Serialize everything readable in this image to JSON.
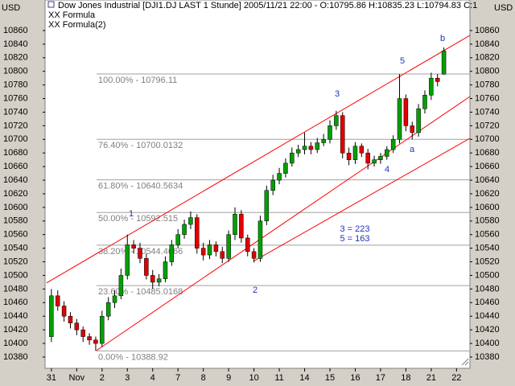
{
  "chart_data": {
    "type": "candlestick",
    "title": "Dow Jones Industrial [DJI1.DJ LAST 1 Stunde] 2005/11/21 22:00 - O:10795.86 H:10835.23 L:10794.83 C:1",
    "legend": [
      "XX Formula",
      "XX Formula(2)"
    ],
    "y_unit": "USD",
    "up_color": "#00a000",
    "down_color": "#e00000",
    "x": [
      0,
      0.25,
      0.5,
      0.75,
      1,
      1.25,
      1.5,
      1.75,
      2,
      2.25,
      2.5,
      2.75,
      3,
      3.25,
      3.5,
      3.75,
      4,
      4.25,
      4.5,
      4.75,
      5,
      5.25,
      5.5,
      5.75,
      6,
      6.25,
      6.5,
      6.75,
      7,
      7.25,
      7.5,
      7.75,
      8,
      8.25,
      8.5,
      8.75,
      9,
      9.25,
      9.5,
      9.75,
      10,
      10.25,
      10.5,
      10.75,
      11,
      11.25,
      11.5,
      11.75,
      12,
      12.25,
      12.5,
      12.75,
      13,
      13.25,
      13.5,
      13.75,
      14,
      14.25,
      14.5,
      14.75,
      15,
      15.25,
      15.5
    ],
    "open": [
      10410,
      10470,
      10455,
      10440,
      10430,
      10420,
      10410,
      10405,
      10400,
      10440,
      10460,
      10470,
      10500,
      10545,
      10540,
      10525,
      10500,
      10490,
      10495,
      10520,
      10545,
      10560,
      10575,
      10585,
      10540,
      10530,
      10545,
      10535,
      10525,
      10560,
      10590,
      10555,
      10535,
      10525,
      10580,
      10625,
      10640,
      10650,
      10665,
      10680,
      10685,
      10690,
      10685,
      10695,
      10700,
      10720,
      10735,
      10680,
      10670,
      10690,
      10680,
      10665,
      10670,
      10675,
      10685,
      10700,
      10760,
      10720,
      10710,
      10745,
      10765,
      10790,
      10795.86
    ],
    "high": [
      10480,
      10478,
      10462,
      10446,
      10436,
      10425,
      10415,
      10410,
      10448,
      10468,
      10478,
      10510,
      10560,
      10552,
      10548,
      10532,
      10508,
      10502,
      10528,
      10552,
      10568,
      10582,
      10594,
      10590,
      10548,
      10552,
      10550,
      10542,
      10566,
      10600,
      10596,
      10560,
      10540,
      10588,
      10632,
      10648,
      10658,
      10672,
      10688,
      10692,
      10710,
      10696,
      10702,
      10708,
      10728,
      10742,
      10740,
      10688,
      10696,
      10694,
      10686,
      10676,
      10680,
      10690,
      10706,
      10796,
      10766,
      10726,
      10752,
      10772,
      10798,
      10796,
      10835.23
    ],
    "low": [
      10402,
      10448,
      10432,
      10422,
      10412,
      10402,
      10398,
      10388.92,
      10395,
      10434,
      10452,
      10465,
      10494,
      10532,
      10518,
      10494,
      10480,
      10484,
      10490,
      10514,
      10540,
      10554,
      10568,
      10532,
      10522,
      10524,
      10528,
      10518,
      10520,
      10552,
      10548,
      10528,
      10519,
      10520,
      10574,
      10618,
      10634,
      10644,
      10660,
      10674,
      10678,
      10678,
      10680,
      10690,
      10694,
      10714,
      10672,
      10662,
      10664,
      10674,
      10656,
      10660,
      10664,
      10670,
      10680,
      10694,
      10712,
      10700,
      10704,
      10738,
      10758,
      10778,
      10794.83
    ],
    "close": [
      10470,
      10455,
      10440,
      10430,
      10420,
      10410,
      10405,
      10400,
      10440,
      10460,
      10470,
      10500,
      10545,
      10540,
      10525,
      10500,
      10490,
      10495,
      10520,
      10545,
      10560,
      10575,
      10585,
      10540,
      10530,
      10545,
      10535,
      10525,
      10560,
      10590,
      10555,
      10535,
      10525,
      10580,
      10625,
      10640,
      10650,
      10665,
      10680,
      10685,
      10690,
      10685,
      10695,
      10700,
      10720,
      10735,
      10680,
      10670,
      10690,
      10680,
      10665,
      10670,
      10675,
      10685,
      10700,
      10760,
      10720,
      10710,
      10745,
      10765,
      10790,
      10785,
      10830
    ],
    "xlim": [
      -0.25,
      16.53
    ],
    "ylim": [
      10363.4,
      10904.9
    ],
    "xticks": [
      {
        "value": 0,
        "label": "31"
      },
      {
        "value": 1,
        "label": "Nov"
      },
      2,
      3,
      4,
      {
        "value": 5,
        "label": "7"
      },
      {
        "value": 6,
        "label": "8"
      },
      {
        "value": 7,
        "label": "9"
      },
      {
        "value": 8,
        "label": "10"
      },
      {
        "value": 9,
        "label": "11"
      },
      {
        "value": 10,
        "label": "14"
      },
      {
        "value": 11,
        "label": "15"
      },
      {
        "value": 12,
        "label": "16"
      },
      {
        "value": 13,
        "label": "17"
      },
      {
        "value": 14,
        "label": "18"
      },
      {
        "value": 15,
        "label": "21"
      },
      {
        "value": 16,
        "label": "22"
      }
    ],
    "yticks": [
      10380,
      10400,
      10420,
      10440,
      10460,
      10480,
      10500,
      10520,
      10540,
      10560,
      10580,
      10600,
      10620,
      10640,
      10660,
      10680,
      10700,
      10720,
      10740,
      10760,
      10780,
      10800,
      10820,
      10840,
      10860
    ],
    "fib_levels": [
      {
        "value": 10796.11,
        "label": "100.00% - 10796.11"
      },
      {
        "value": 10700.0132,
        "label": "76.40% - 10700.0132"
      },
      {
        "value": 10640.5634,
        "label": "61.80% - 10640.5634"
      },
      {
        "value": 10592.515,
        "label": "50.00% - 10592.515"
      },
      {
        "value": 10544.4666,
        "label": "38.20% - 10544.4666"
      },
      {
        "value": 10485.0168,
        "label": "23.60% - 10485.0168"
      },
      {
        "value": 10388.92,
        "label": "0.00% - 10388.92"
      }
    ],
    "trend_color": "#ff0000",
    "trend_lines": [
      {
        "x": [
          -0.19,
          16.53
        ],
        "y": [
          10489,
          10853
        ]
      },
      {
        "x": [
          1.78,
          16.53
        ],
        "y": [
          10389.5,
          10763
        ]
      },
      {
        "x": [
          7.98,
          16.53
        ],
        "y": [
          10520.7,
          10701.6
        ]
      }
    ],
    "annotations": [
      "1",
      "2",
      "3",
      "4",
      "5",
      "a",
      "b",
      "3 = 223",
      "5 = 163"
    ]
  }
}
